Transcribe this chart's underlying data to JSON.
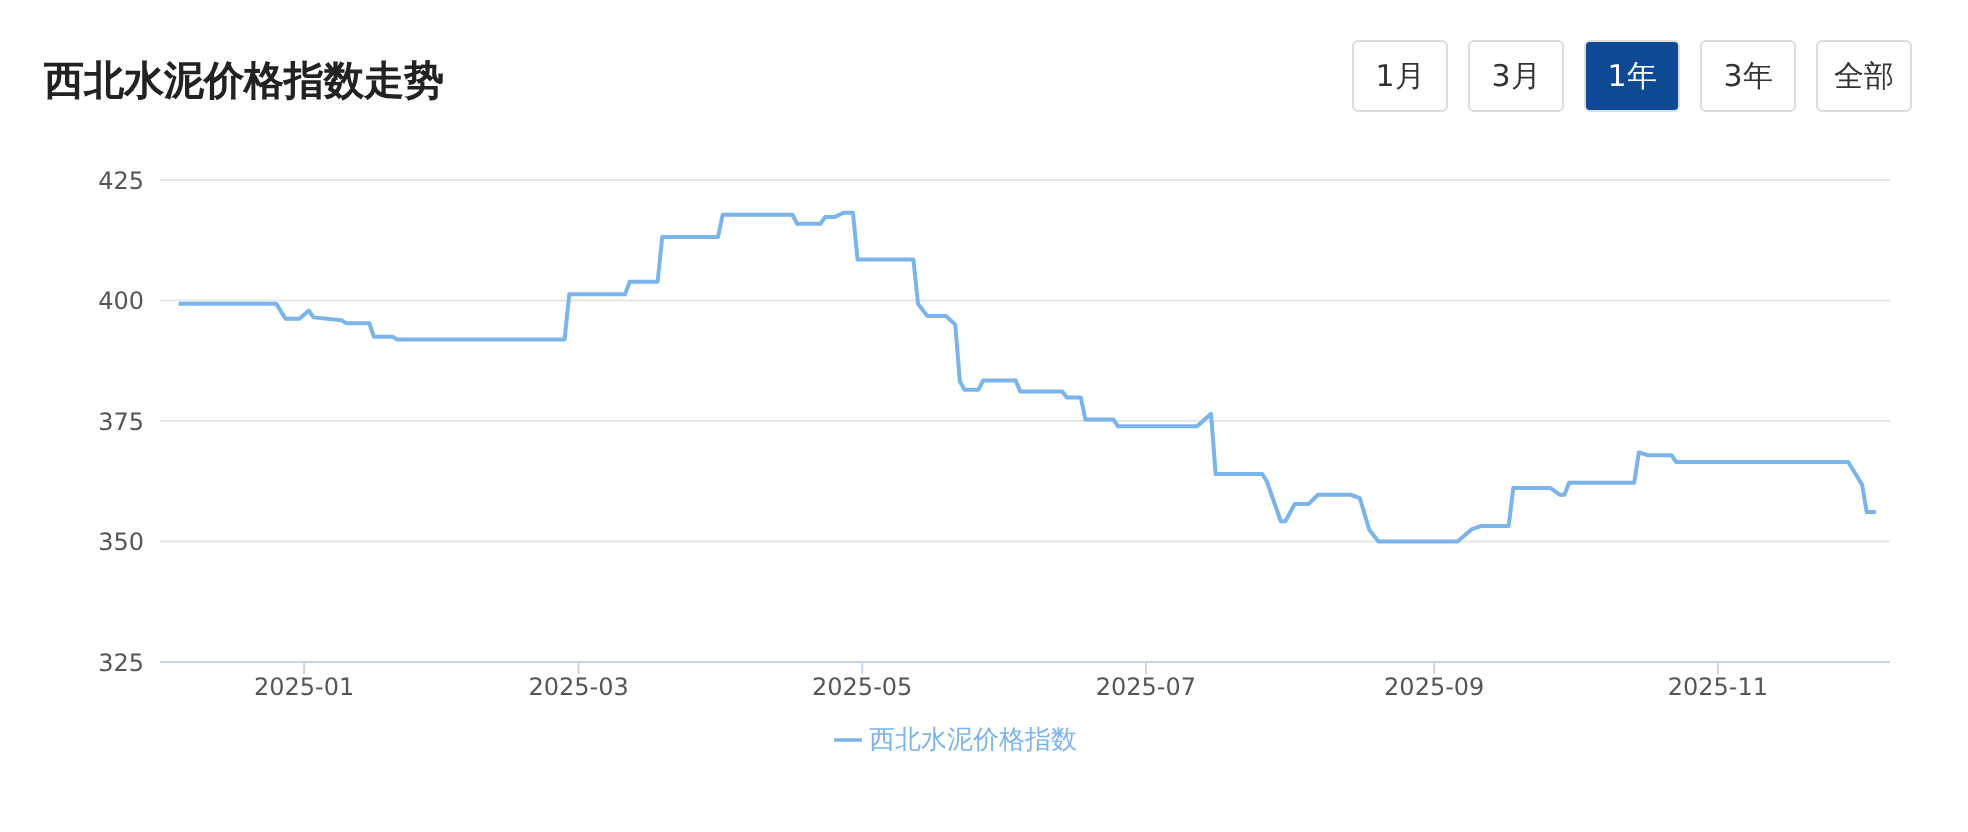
{
  "chart_data": {
    "type": "line",
    "title": "西北水泥价格指数走势",
    "annotations": [
      "1月",
      "3月",
      "1年",
      "3年",
      "全部"
    ],
    "xlim": [
      "2024-12-01",
      "2025-12-08"
    ],
    "xticks": [
      "2025-01",
      "2025-03",
      "2025-05",
      "2025-07",
      "2025-09",
      "2025-11"
    ],
    "ylim": [
      325,
      425
    ],
    "yticks": [
      325,
      350,
      375,
      400,
      425
    ],
    "grid": "y",
    "legend": "bottom",
    "marker": "none",
    "line_style": "solid",
    "x": [
      "2024-12-05",
      "2024-12-26",
      "2024-12-28",
      "2024-12-31",
      "2025-01-02",
      "2025-01-03",
      "2025-01-09",
      "2025-01-10",
      "2025-01-15",
      "2025-01-16",
      "2025-01-20",
      "2025-01-21",
      "2025-02-26",
      "2025-02-27",
      "2025-03-11",
      "2025-03-12",
      "2025-03-18",
      "2025-03-19",
      "2025-03-31",
      "2025-04-01",
      "2025-04-16",
      "2025-04-17",
      "2025-04-22",
      "2025-04-23",
      "2025-04-25",
      "2025-04-27",
      "2025-04-29",
      "2025-04-30",
      "2025-05-12",
      "2025-05-13",
      "2025-05-15",
      "2025-05-19",
      "2025-05-21",
      "2025-05-22",
      "2025-05-23",
      "2025-05-26",
      "2025-05-27",
      "2025-06-03",
      "2025-06-04",
      "2025-06-13",
      "2025-06-14",
      "2025-06-17",
      "2025-06-18",
      "2025-06-24",
      "2025-06-25",
      "2025-07-12",
      "2025-07-15",
      "2025-07-16",
      "2025-07-26",
      "2025-07-27",
      "2025-07-30",
      "2025-07-31",
      "2025-08-02",
      "2025-08-05",
      "2025-08-07",
      "2025-08-14",
      "2025-08-16",
      "2025-08-18",
      "2025-08-20",
      "2025-09-06",
      "2025-09-09",
      "2025-09-11",
      "2025-09-17",
      "2025-09-18",
      "2025-09-26",
      "2025-09-28",
      "2025-09-29",
      "2025-09-30",
      "2025-10-14",
      "2025-10-15",
      "2025-10-17",
      "2025-10-22",
      "2025-10-23",
      "2025-11-29",
      "2025-12-02",
      "2025-12-03",
      "2025-12-05"
    ],
    "series": [
      {
        "name": "西北水泥价格指数",
        "color": "#7ab4ea",
        "values": [
          399.3,
          399.3,
          396.2,
          396.2,
          397.9,
          396.5,
          395.9,
          395.3,
          395.3,
          392.5,
          392.5,
          391.9,
          391.9,
          401.3,
          401.3,
          403.9,
          403.9,
          413.2,
          413.2,
          417.8,
          417.8,
          415.9,
          415.9,
          417.3,
          417.3,
          418.2,
          418.2,
          408.5,
          408.5,
          399.3,
          396.8,
          396.8,
          395.0,
          383.2,
          381.5,
          381.5,
          383.4,
          383.4,
          381.1,
          381.1,
          379.9,
          379.9,
          375.3,
          375.3,
          373.9,
          373.9,
          376.5,
          364.0,
          364.0,
          362.5,
          354.2,
          354.2,
          357.8,
          357.8,
          359.7,
          359.7,
          359.0,
          352.5,
          350.0,
          350.0,
          352.5,
          353.2,
          353.2,
          361.1,
          361.1,
          359.7,
          359.7,
          362.2,
          362.2,
          368.5,
          367.9,
          367.9,
          366.5,
          366.5,
          361.8,
          356.1,
          356.1
        ]
      }
    ]
  }
}
